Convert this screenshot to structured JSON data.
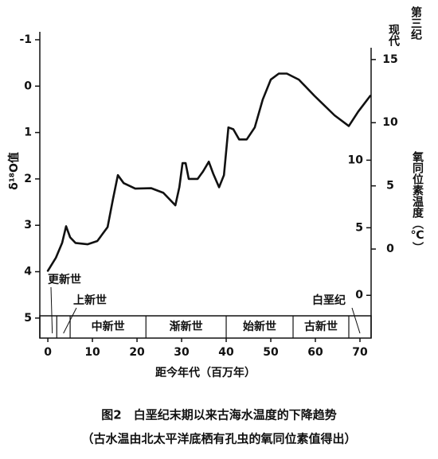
{
  "chart_data": {
    "type": "line",
    "y_label": "δ¹⁸O值",
    "x_label": "距今年代（百万年）",
    "y2_label": "氧同位素温度（℃）",
    "caption": "图2　白垩纪末期以来古海水温度的下降趋势",
    "subcaption": "（古水温由北太平洋底栖有孔虫的氧同位素值得出）",
    "xlim": [
      -1.8,
      72.5
    ],
    "xticks": [
      0,
      10,
      20,
      30,
      40,
      50,
      60,
      70
    ],
    "ylim": [
      -1.2,
      5.5
    ],
    "y_inverted": true,
    "yticks": [
      -1,
      0,
      1,
      2,
      3,
      4,
      5
    ],
    "y2_name": "第三纪",
    "y2lim": [
      -7.3,
      17.3
    ],
    "y2ticks": [
      0,
      5,
      10,
      15
    ],
    "y3_name": "现代",
    "y3lim": [
      -3.4,
      19.6
    ],
    "y3ticks": [
      0,
      5,
      10
    ],
    "series": [
      {
        "name": "δ¹⁸O",
        "color": "#111111",
        "x": [
          0,
          1.8,
          3.2,
          4.1,
          5,
          6.2,
          8.9,
          11.1,
          13.4,
          14.6,
          15.7,
          17,
          19.6,
          23.2,
          25.9,
          28.6,
          29.5,
          30.2,
          30.9,
          31.6,
          33.6,
          34.8,
          36.1,
          37.1,
          38.4,
          39.5,
          40.5,
          41.6,
          42.9,
          44.6,
          46.4,
          48.2,
          50,
          51.8,
          53.6,
          56.3,
          59.8,
          64.3,
          67.5,
          69.6,
          72.3
        ],
        "values": [
          3.98,
          3.7,
          3.38,
          3.02,
          3.26,
          3.38,
          3.41,
          3.34,
          3.04,
          2.44,
          1.92,
          2.09,
          2.21,
          2.2,
          2.3,
          2.57,
          2.18,
          1.66,
          1.66,
          2.0,
          2.0,
          1.84,
          1.63,
          1.89,
          2.18,
          1.92,
          0.89,
          0.93,
          1.15,
          1.15,
          0.89,
          0.29,
          -0.14,
          -0.27,
          -0.27,
          -0.14,
          0.21,
          0.63,
          0.86,
          0.55,
          0.21
        ]
      }
    ],
    "eras": [
      {
        "name": "更新世",
        "start": 0,
        "end": 2
      },
      {
        "name": "上新世",
        "start": 2,
        "end": 5
      },
      {
        "name": "中新世",
        "start": 5,
        "end": 22
      },
      {
        "name": "渐新世",
        "start": 22,
        "end": 40
      },
      {
        "name": "始新世",
        "start": 40,
        "end": 55
      },
      {
        "name": "古新世",
        "start": 55,
        "end": 67.5
      },
      {
        "name": "白垩纪",
        "start": 67.5,
        "end": 72.5
      }
    ]
  }
}
